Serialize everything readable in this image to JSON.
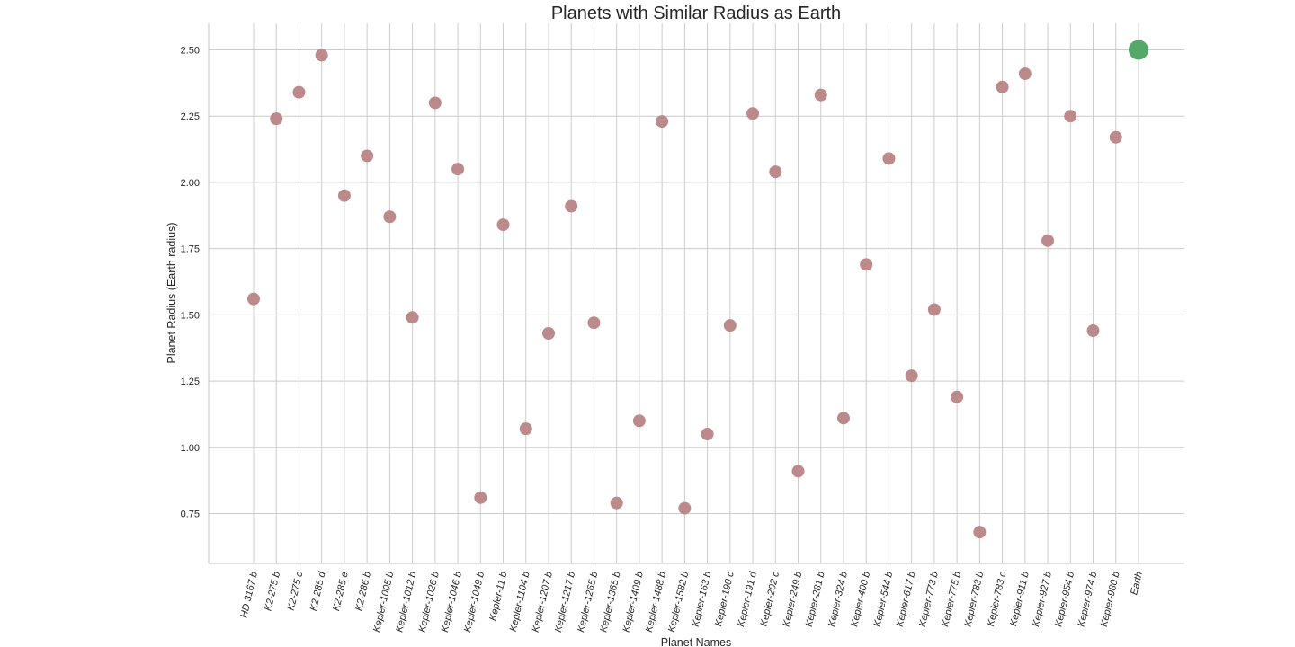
{
  "chart_data": {
    "type": "scatter",
    "title": "Planets with Similar Radius as Earth",
    "xlabel": "Planet Names",
    "ylabel": "Planet Radius (Earth radius)",
    "ylim": [
      0.56,
      2.6
    ],
    "yticks": [
      0.75,
      1.0,
      1.25,
      1.5,
      1.75,
      2.0,
      2.25,
      2.5
    ],
    "ytick_labels": [
      "0.75",
      "1.00",
      "1.25",
      "1.50",
      "1.75",
      "2.00",
      "2.25",
      "2.50"
    ],
    "grid": true,
    "categories": [
      "HD 3167 b",
      "K2-275 b",
      "K2-275 c",
      "K2-285 d",
      "K2-285 e",
      "K2-286 b",
      "Kepler-1005 b",
      "Kepler-1012 b",
      "Kepler-1026 b",
      "Kepler-1046 b",
      "Kepler-1049 b",
      "Kepler-11 b",
      "Kepler-1104 b",
      "Kepler-1207 b",
      "Kepler-1217 b",
      "Kepler-1265 b",
      "Kepler-1365 b",
      "Kepler-1409 b",
      "Kepler-1488 b",
      "Kepler-1582 b",
      "Kepler-163 b",
      "Kepler-190 c",
      "Kepler-191 d",
      "Kepler-202 c",
      "Kepler-249 b",
      "Kepler-281 b",
      "Kepler-324 b",
      "Kepler-400 b",
      "Kepler-544 b",
      "Kepler-617 b",
      "Kepler-773 b",
      "Kepler-775 b",
      "Kepler-783 b",
      "Kepler-783 c",
      "Kepler-911 b",
      "Kepler-927 b",
      "Kepler-954 b",
      "Kepler-974 b",
      "Kepler-980 b",
      "Earth"
    ],
    "series": [
      {
        "values": [
          1.56,
          2.24,
          2.34,
          2.48,
          1.95,
          2.1,
          1.87,
          1.49,
          2.3,
          2.05,
          0.81,
          1.84,
          1.07,
          1.43,
          1.91,
          1.47,
          0.79,
          1.1,
          2.23,
          0.77,
          1.05,
          1.46,
          2.26,
          2.04,
          0.91,
          2.33,
          1.11,
          1.69,
          2.09,
          1.27,
          1.52,
          1.19,
          0.68,
          2.36,
          2.41,
          1.78,
          2.25,
          1.44,
          2.17
        ],
        "color": "#bc8a8a"
      },
      {
        "values": [
          null,
          null,
          null,
          null,
          null,
          null,
          null,
          null,
          null,
          null,
          null,
          null,
          null,
          null,
          null,
          null,
          null,
          null,
          null,
          null,
          null,
          null,
          null,
          null,
          null,
          null,
          null,
          null,
          null,
          null,
          null,
          null,
          null,
          null,
          null,
          null,
          null,
          null,
          null,
          2.5
        ],
        "color": "#55a868"
      }
    ]
  }
}
